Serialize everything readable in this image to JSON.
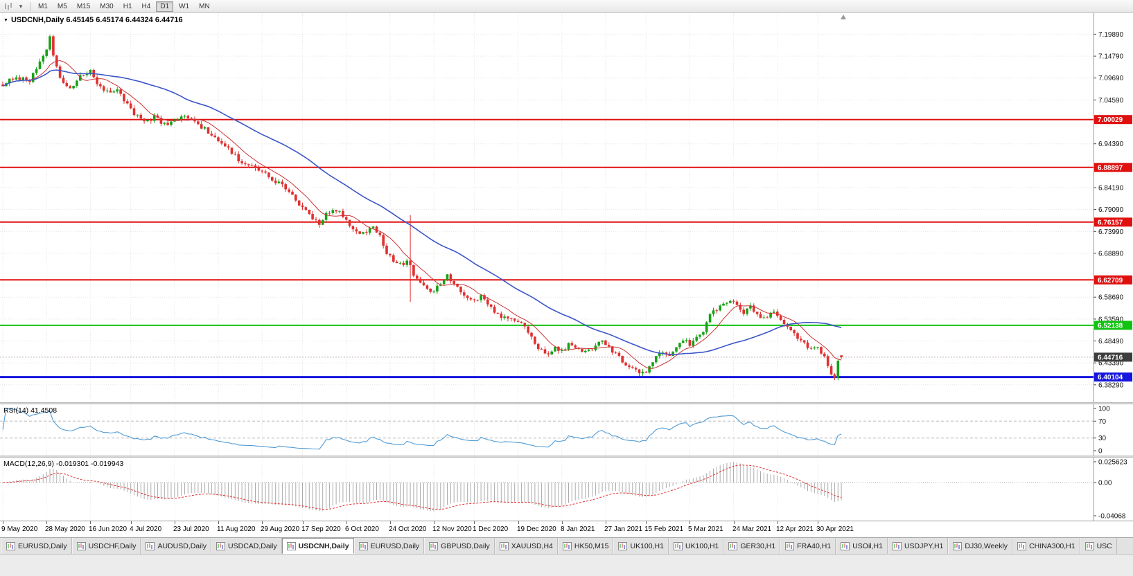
{
  "toolbar": {
    "timeframes": [
      "M1",
      "M5",
      "M15",
      "M30",
      "H1",
      "H4",
      "D1",
      "W1",
      "MN"
    ],
    "active": "D1"
  },
  "chart": {
    "symbol": "USDCNH",
    "period": "Daily",
    "title_line": "USDCNH,Daily 6.45145 6.45174 6.44324 6.44716"
  },
  "chart_data": {
    "type": "candlestick",
    "symbol": "USDCNH",
    "timeframe": "Daily",
    "quote": {
      "open": 6.45145,
      "high": 6.45174,
      "low": 6.44324,
      "close": 6.44716
    },
    "bars": 250,
    "y_axis": {
      "min": 6.352,
      "max": 7.235,
      "ticks": [
        7.1989,
        7.1479,
        7.0969,
        7.0459,
        6.9439,
        6.8419,
        6.7909,
        6.7399,
        6.6889,
        6.5869,
        6.5359,
        6.4849,
        6.4339,
        6.3829
      ]
    },
    "levels": [
      {
        "value": 7.00029,
        "color": "#e01010",
        "width": 2
      },
      {
        "value": 6.88897,
        "color": "#e01010",
        "width": 2
      },
      {
        "value": 6.76157,
        "color": "#e01010",
        "width": 2
      },
      {
        "value": 6.62709,
        "color": "#e01010",
        "width": 2
      },
      {
        "value": 6.52138,
        "color": "#12c212",
        "width": 2
      },
      {
        "value": 6.40104,
        "color": "#1515dd",
        "width": 3
      }
    ],
    "current_price": {
      "value": 6.44716,
      "color": "#3d3d3d"
    },
    "x_labels": [
      [
        0,
        "9 May 2020"
      ],
      [
        13,
        "28 May 2020"
      ],
      [
        26,
        "16 Jun 2020"
      ],
      [
        38,
        "4 Jul 2020"
      ],
      [
        51,
        "23 Jul 2020"
      ],
      [
        64,
        "11 Aug 2020"
      ],
      [
        77,
        "29 Aug 2020"
      ],
      [
        89,
        "17 Sep 2020"
      ],
      [
        102,
        "6 Oct 2020"
      ],
      [
        115,
        "24 Oct 2020"
      ],
      [
        128,
        "12 Nov 2020"
      ],
      [
        140,
        "1 Dec 2020"
      ],
      [
        153,
        "19 Dec 2020"
      ],
      [
        166,
        "8 Jan 2021"
      ],
      [
        179,
        "27 Jan 2021"
      ],
      [
        191,
        "15 Feb 2021"
      ],
      [
        204,
        "5 Mar 2021"
      ],
      [
        217,
        "24 Mar 2021"
      ],
      [
        230,
        "12 Apr 2021"
      ],
      [
        242,
        "30 Apr 2021"
      ]
    ],
    "price_path": [
      [
        0,
        7.082
      ],
      [
        4,
        7.1
      ],
      [
        8,
        7.09
      ],
      [
        12,
        7.145
      ],
      [
        14,
        7.192
      ],
      [
        15,
        7.15
      ],
      [
        17,
        7.095
      ],
      [
        20,
        7.075
      ],
      [
        23,
        7.1
      ],
      [
        26,
        7.115
      ],
      [
        28,
        7.085
      ],
      [
        31,
        7.065
      ],
      [
        34,
        7.072
      ],
      [
        36,
        7.048
      ],
      [
        39,
        7.012
      ],
      [
        42,
        6.998
      ],
      [
        45,
        7.005
      ],
      [
        48,
        6.988
      ],
      [
        51,
        6.998
      ],
      [
        54,
        7.008
      ],
      [
        57,
        6.992
      ],
      [
        60,
        6.978
      ],
      [
        63,
        6.955
      ],
      [
        66,
        6.938
      ],
      [
        69,
        6.915
      ],
      [
        72,
        6.895
      ],
      [
        75,
        6.885
      ],
      [
        78,
        6.872
      ],
      [
        81,
        6.855
      ],
      [
        84,
        6.842
      ],
      [
        86,
        6.822
      ],
      [
        88,
        6.8
      ],
      [
        90,
        6.788
      ],
      [
        92,
        6.768
      ],
      [
        94,
        6.758
      ],
      [
        96,
        6.778
      ],
      [
        98,
        6.795
      ],
      [
        100,
        6.788
      ],
      [
        102,
        6.762
      ],
      [
        104,
        6.742
      ],
      [
        106,
        6.732
      ],
      [
        108,
        6.742
      ],
      [
        110,
        6.752
      ],
      [
        112,
        6.732
      ],
      [
        114,
        6.692
      ],
      [
        116,
        6.672
      ],
      [
        118,
        6.662
      ],
      [
        120,
        6.668
      ],
      [
        121,
        6.658
      ],
      [
        122,
        6.635
      ],
      [
        124,
        6.618
      ],
      [
        126,
        6.605
      ],
      [
        128,
        6.598
      ],
      [
        130,
        6.622
      ],
      [
        132,
        6.636
      ],
      [
        134,
        6.618
      ],
      [
        136,
        6.598
      ],
      [
        138,
        6.582
      ],
      [
        140,
        6.576
      ],
      [
        142,
        6.588
      ],
      [
        144,
        6.572
      ],
      [
        146,
        6.556
      ],
      [
        148,
        6.542
      ],
      [
        150,
        6.54
      ],
      [
        152,
        6.532
      ],
      [
        154,
        6.525
      ],
      [
        156,
        6.508
      ],
      [
        158,
        6.48
      ],
      [
        160,
        6.462
      ],
      [
        162,
        6.455
      ],
      [
        164,
        6.468
      ],
      [
        166,
        6.462
      ],
      [
        168,
        6.478
      ],
      [
        170,
        6.468
      ],
      [
        172,
        6.455
      ],
      [
        174,
        6.462
      ],
      [
        176,
        6.475
      ],
      [
        178,
        6.482
      ],
      [
        180,
        6.468
      ],
      [
        182,
        6.452
      ],
      [
        184,
        6.438
      ],
      [
        186,
        6.428
      ],
      [
        188,
        6.415
      ],
      [
        190,
        6.408
      ],
      [
        192,
        6.422
      ],
      [
        194,
        6.448
      ],
      [
        196,
        6.462
      ],
      [
        198,
        6.455
      ],
      [
        200,
        6.472
      ],
      [
        202,
        6.488
      ],
      [
        204,
        6.478
      ],
      [
        206,
        6.492
      ],
      [
        208,
        6.505
      ],
      [
        210,
        6.545
      ],
      [
        212,
        6.558
      ],
      [
        214,
        6.575
      ],
      [
        216,
        6.582
      ],
      [
        218,
        6.568
      ],
      [
        220,
        6.552
      ],
      [
        222,
        6.562
      ],
      [
        224,
        6.548
      ],
      [
        226,
        6.536
      ],
      [
        228,
        6.552
      ],
      [
        230,
        6.548
      ],
      [
        232,
        6.528
      ],
      [
        234,
        6.51
      ],
      [
        236,
        6.495
      ],
      [
        238,
        6.478
      ],
      [
        240,
        6.465
      ],
      [
        242,
        6.472
      ],
      [
        244,
        6.448
      ],
      [
        246,
        6.408
      ],
      [
        247,
        6.402
      ],
      [
        248,
        6.44
      ],
      [
        249,
        6.44716
      ]
    ],
    "spike": {
      "i": 121,
      "high": 6.778,
      "low": 6.576
    },
    "colors": {
      "up": "#16a216",
      "down": "#e03030",
      "ma_fast": "#cc3333",
      "ma_slow": "#3c55c8",
      "grid": "#e6e6e6",
      "rsi": "#4f9bd5",
      "macd_bars": "#aaaaaa",
      "macd_signal": "#e03030"
    },
    "indicators": {
      "rsi": {
        "label_text": "RSI(14) 41.4508",
        "period": 14,
        "value": 41.4508,
        "axis": [
          {
            "v": 100,
            "t": "100"
          },
          {
            "v": 70,
            "t": "70"
          },
          {
            "v": 30,
            "t": "30"
          },
          {
            "v": 0,
            "t": "0"
          }
        ],
        "guides": [
          70,
          30
        ]
      },
      "macd": {
        "label_text": "MACD(12,26,9) -0.019301 -0.019943",
        "macd": -0.019301,
        "signal": -0.019943,
        "axis": [
          {
            "v": 0.025623,
            "t": "0.025623"
          },
          {
            "v": 0,
            "t": "0.00"
          },
          {
            "v": -0.04068,
            "t": "-0.04068"
          }
        ],
        "range": {
          "max": 0.025623,
          "min": -0.04068
        }
      }
    }
  },
  "tabs": [
    {
      "label": "EURUSD,Daily"
    },
    {
      "label": "USDCHF,Daily"
    },
    {
      "label": "AUDUSD,Daily"
    },
    {
      "label": "USDCAD,Daily"
    },
    {
      "label": "USDCNH,Daily",
      "active": true
    },
    {
      "label": "EURUSD,Daily"
    },
    {
      "label": "GBPUSD,Daily"
    },
    {
      "label": "XAUUSD,H4"
    },
    {
      "label": "HK50,M15"
    },
    {
      "label": "UK100,H1"
    },
    {
      "label": "UK100,H1"
    },
    {
      "label": "GER30,H1"
    },
    {
      "label": "FRA40,H1"
    },
    {
      "label": "USOil,H1"
    },
    {
      "label": "USDJPY,H1"
    },
    {
      "label": "DJ30,Weekly"
    },
    {
      "label": "CHINA300,H1"
    },
    {
      "label": "USC"
    }
  ]
}
